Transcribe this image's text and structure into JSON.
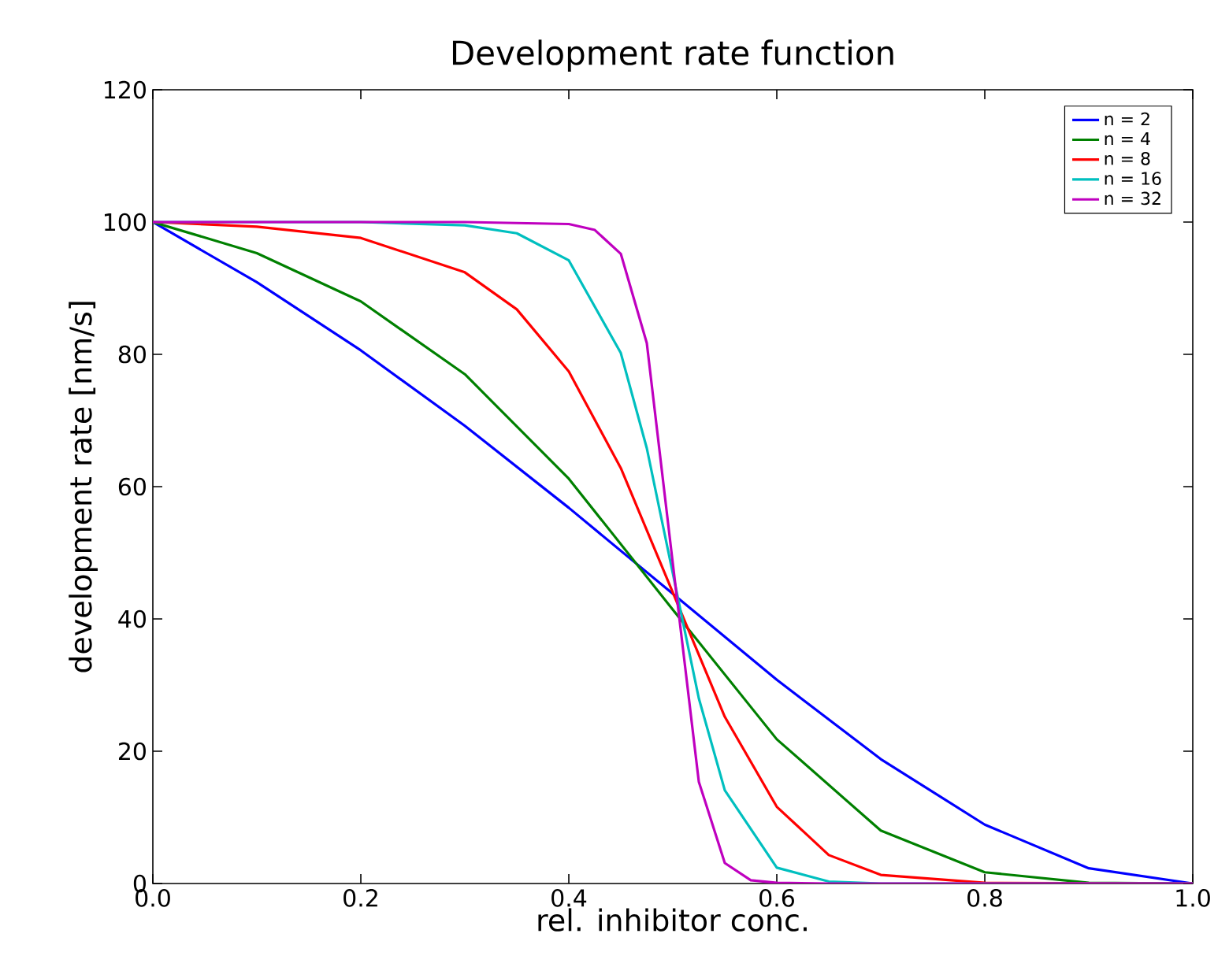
{
  "chart_data": {
    "type": "line",
    "title": "Development rate function",
    "xlabel": "rel. inhibitor conc.",
    "ylabel": "development rate [nm/s]",
    "xlim": [
      0,
      1
    ],
    "ylim": [
      0,
      120
    ],
    "xticks": [
      {
        "value": 0,
        "label": "0.0"
      },
      {
        "value": 0.2,
        "label": "0.2"
      },
      {
        "value": 0.4,
        "label": "0.4"
      },
      {
        "value": 0.6,
        "label": "0.6"
      },
      {
        "value": 0.8,
        "label": "0.8"
      },
      {
        "value": 1,
        "label": "1.0"
      }
    ],
    "yticks": [
      0,
      20,
      40,
      60,
      80,
      100,
      120
    ],
    "grid": false,
    "legend": "top right",
    "marker": "none",
    "line_style": "solid",
    "series": [
      {
        "name": "n = 2",
        "color": "#0000ff",
        "x": [
          0,
          0.1,
          0.2,
          0.3,
          0.4,
          0.5,
          0.6,
          0.7,
          0.8,
          0.9,
          1
        ],
        "values": [
          100,
          90.9,
          80.6,
          69.2,
          56.8,
          43.8,
          30.8,
          18.8,
          8.9,
          2.3,
          0
        ]
      },
      {
        "name": "n = 4",
        "color": "#008000",
        "x": [
          0,
          0.1,
          0.2,
          0.3,
          0.4,
          0.5,
          0.6,
          0.7,
          0.8,
          0.9,
          1
        ],
        "values": [
          100,
          95.3,
          88.0,
          77.0,
          61.2,
          41.4,
          21.8,
          8.0,
          1.7,
          0.1,
          0
        ]
      },
      {
        "name": "n = 8",
        "color": "#ff0000",
        "x": [
          0,
          0.1,
          0.2,
          0.3,
          0.35,
          0.4,
          0.45,
          0.5,
          0.55,
          0.6,
          0.65,
          0.7,
          0.8,
          1
        ],
        "values": [
          100,
          99.3,
          97.6,
          92.4,
          86.8,
          77.4,
          62.8,
          44.0,
          25.2,
          11.6,
          4.3,
          1.3,
          0.1,
          0
        ]
      },
      {
        "name": "n = 16",
        "color": "#00bfbf",
        "x": [
          0,
          0.2,
          0.3,
          0.35,
          0.4,
          0.45,
          0.475,
          0.5,
          0.525,
          0.55,
          0.6,
          0.65,
          0.7,
          1
        ],
        "values": [
          100,
          100,
          99.5,
          98.3,
          94.2,
          80.2,
          65.8,
          46.9,
          28.0,
          14.1,
          2.4,
          0.3,
          0,
          0
        ]
      },
      {
        "name": "n = 32",
        "color": "#bf00bf",
        "x": [
          0,
          0.3,
          0.4,
          0.425,
          0.45,
          0.475,
          0.5,
          0.525,
          0.55,
          0.575,
          0.6,
          0.65,
          1
        ],
        "values": [
          100,
          100,
          99.7,
          98.8,
          95.2,
          81.7,
          48.4,
          15.4,
          3.1,
          0.5,
          0.1,
          0,
          0
        ]
      }
    ]
  }
}
